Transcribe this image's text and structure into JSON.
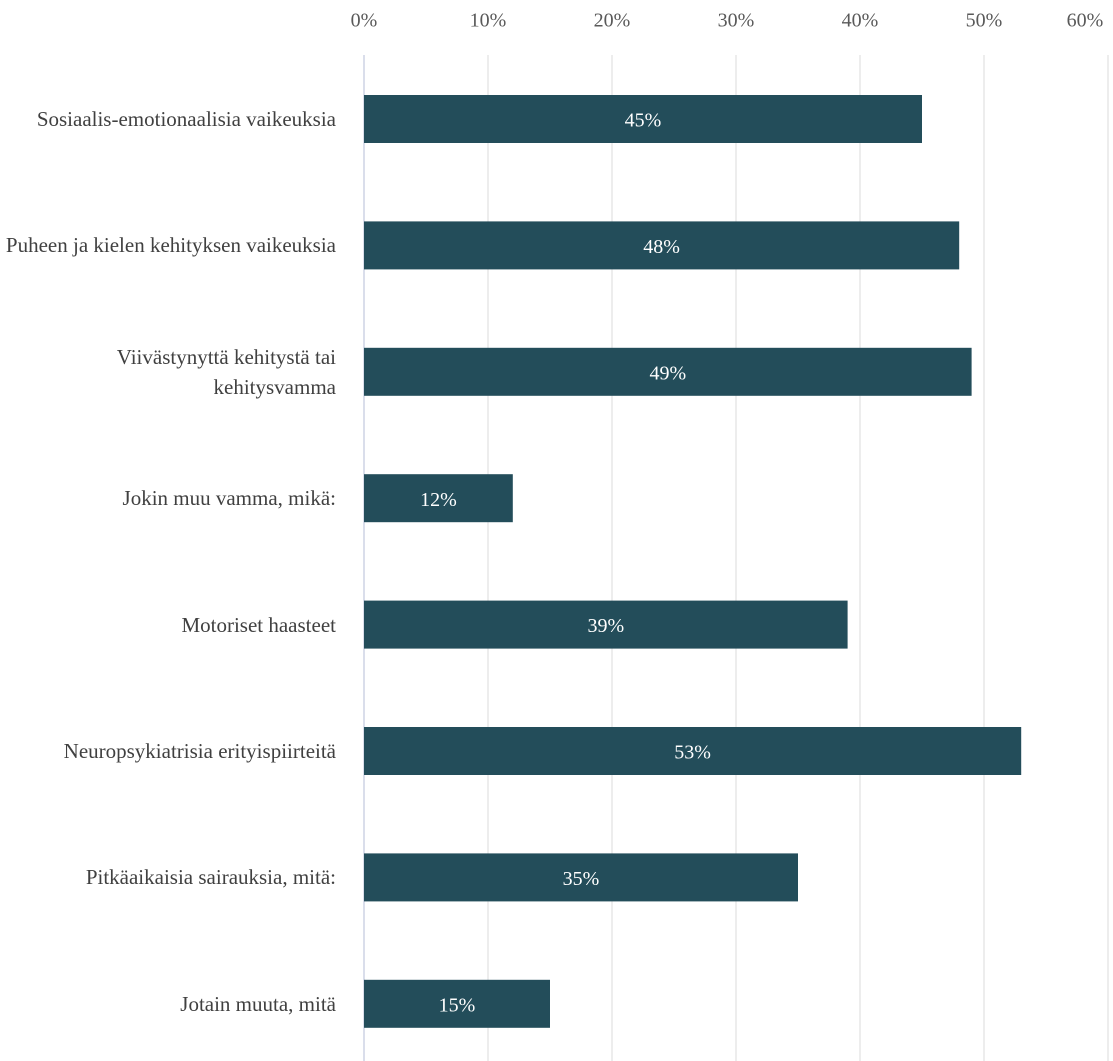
{
  "chart_data": {
    "type": "bar",
    "orientation": "horizontal",
    "categories": [
      "Sosiaalis-emotionaalisia vaikeuksia",
      "Puheen ja kielen kehityksen vaikeuksia",
      "Viivästynyttä kehitystä tai kehitysvamma",
      "Jokin muu vamma, mikä:",
      "Motoriset haasteet",
      "Neuropsykiatrisia erityispiirteitä",
      "Pitkäaikaisia sairauksia, mitä:",
      "Jotain muuta, mitä"
    ],
    "values": [
      45,
      48,
      49,
      12,
      39,
      53,
      35,
      15
    ],
    "value_labels": [
      "45%",
      "48%",
      "49%",
      "12%",
      "39%",
      "53%",
      "35%",
      "15%"
    ],
    "color": "#234d5a",
    "xlim": [
      0,
      60
    ],
    "xticks": [
      {
        "value": 0,
        "label": "0%"
      },
      {
        "value": 10,
        "label": "10%"
      },
      {
        "value": 20,
        "label": "20%"
      },
      {
        "value": 30,
        "label": "30%"
      },
      {
        "value": 40,
        "label": "40%"
      },
      {
        "value": 50,
        "label": "50%"
      },
      {
        "value": 60,
        "label": "60%"
      }
    ],
    "grid": true
  }
}
